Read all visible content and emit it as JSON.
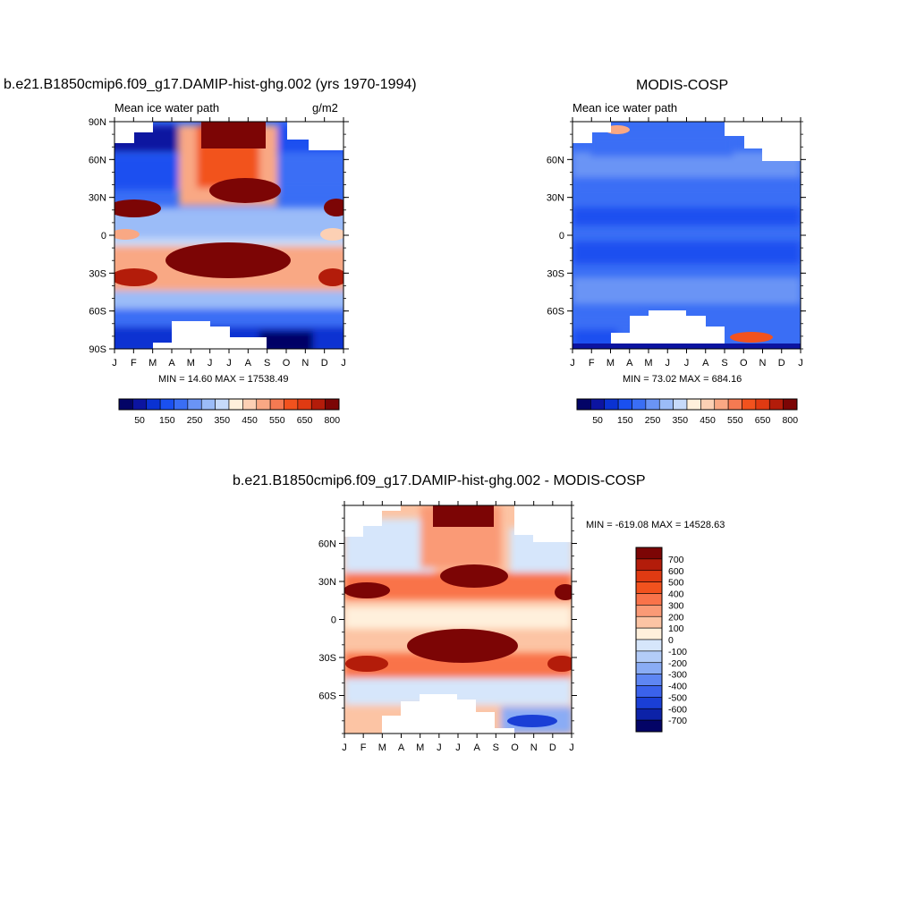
{
  "chart_data": [
    {
      "type": "heatmap",
      "title": "b.e21.B1850cmip6.f09_g17.DAMIP-hist-ghg.002 (yrs 1970-1994)",
      "left_label": "Mean ice water path",
      "units": "g/m2",
      "stats": "MIN =  14.60 MAX = 17538.49",
      "x_ticks": [
        "J",
        "F",
        "M",
        "A",
        "M",
        "J",
        "J",
        "A",
        "S",
        "O",
        "N",
        "D",
        "J"
      ],
      "y_ticks": [
        "90N",
        "60N",
        "30N",
        "0",
        "30S",
        "60S",
        "90S"
      ],
      "ylim": [
        -90,
        90
      ],
      "colorbar": {
        "levels": [
          25,
          50,
          100,
          150,
          200,
          250,
          300,
          350,
          400,
          450,
          500,
          550,
          600,
          650,
          700,
          800
        ],
        "labels": [
          "50",
          "150",
          "250",
          "350",
          "450",
          "550",
          "650",
          "800"
        ]
      }
    },
    {
      "type": "heatmap",
      "title": "MODIS-COSP",
      "left_label": "Mean ice water path",
      "units": "",
      "stats": "MIN =  73.02 MAX = 684.16",
      "x_ticks": [
        "J",
        "F",
        "M",
        "A",
        "M",
        "J",
        "J",
        "A",
        "S",
        "O",
        "N",
        "D",
        "J"
      ],
      "y_ticks": [
        "60N",
        "30N",
        "0",
        "30S",
        "60S"
      ],
      "ylim": [
        -90,
        90
      ],
      "colorbar": {
        "levels": [
          25,
          50,
          100,
          150,
          200,
          250,
          300,
          350,
          400,
          450,
          500,
          550,
          600,
          650,
          700,
          800
        ],
        "labels": [
          "50",
          "150",
          "250",
          "350",
          "450",
          "550",
          "650",
          "800"
        ]
      }
    },
    {
      "type": "heatmap",
      "title": "b.e21.B1850cmip6.f09_g17.DAMIP-hist-ghg.002 - MODIS-COSP",
      "stats": "MIN = -619.08 MAX = 14528.63",
      "x_ticks": [
        "J",
        "F",
        "M",
        "A",
        "M",
        "J",
        "J",
        "A",
        "S",
        "O",
        "N",
        "D",
        "J"
      ],
      "y_ticks": [
        "60N",
        "30N",
        "0",
        "30S",
        "60S"
      ],
      "ylim": [
        -90,
        90
      ],
      "colorbar": {
        "labels": [
          "700",
          "600",
          "500",
          "400",
          "300",
          "200",
          "100",
          "0",
          "-100",
          "-200",
          "-300",
          "-400",
          "-500",
          "-600",
          "-700"
        ]
      }
    }
  ],
  "colors": {
    "seq": [
      "#030466",
      "#0c14a0",
      "#0a32d2",
      "#1a50f0",
      "#3a6ef5",
      "#6a94f5",
      "#9bbcf8",
      "#c6dafa",
      "#fff0dc",
      "#fcd0b4",
      "#f9a884",
      "#f57a52",
      "#f2521e",
      "#e03a12",
      "#b31c0a",
      "#7c0505"
    ],
    "div": [
      "#7c0505",
      "#b31c0a",
      "#e03a12",
      "#f2521e",
      "#f9734a",
      "#fa9a76",
      "#fcc4a4",
      "#fff0dc",
      "#d6e6fb",
      "#b3ccf8",
      "#8aacf5",
      "#5e86f3",
      "#3a62ec",
      "#1a3fd6",
      "#0c22a8",
      "#030466"
    ]
  }
}
